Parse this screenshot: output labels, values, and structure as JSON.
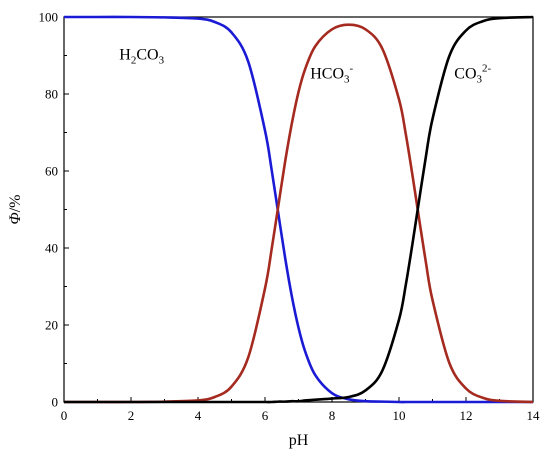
{
  "chart_data": {
    "type": "line",
    "title": "",
    "xlabel": "pH",
    "ylabel": "Φ/%",
    "ylabel_parts": {
      "symbol": "Φ",
      "unit": "/%"
    },
    "xlim": [
      0,
      14
    ],
    "ylim": [
      0,
      100
    ],
    "x_ticks": [
      0,
      2,
      4,
      6,
      8,
      10,
      12,
      14
    ],
    "x_tick_labels": [
      "0",
      "2",
      "4",
      "6",
      "8",
      "10",
      "12",
      "14"
    ],
    "y_ticks": [
      0,
      20,
      40,
      60,
      80,
      100
    ],
    "y_tick_labels": [
      "0",
      "20",
      "40",
      "60",
      "80",
      "100"
    ],
    "grid": false,
    "legend": "none",
    "x": [
      0,
      1,
      2,
      3,
      4,
      4.5,
      5,
      5.5,
      6,
      6.2,
      6.4,
      6.6,
      6.8,
      7,
      7.2,
      7.5,
      8,
      8.5,
      9,
      9.5,
      10,
      10.2,
      10.4,
      10.6,
      10.8,
      11,
      11.5,
      12,
      12.5,
      13,
      14
    ],
    "series": [
      {
        "color": "#1b1bd6",
        "label": {
          "base": "H",
          "sub1": "2",
          "mid": "CO",
          "sub2": "3",
          "sup": ""
        },
        "values": [
          100,
          100,
          100,
          99.9,
          99.6,
          98.7,
          96.0,
          88.4,
          70.5,
          60.2,
          48.8,
          37.5,
          27.5,
          19.3,
          13.1,
          7.0,
          2.3,
          0.7,
          0.2,
          0.1,
          0,
          0,
          0,
          0,
          0,
          0,
          0,
          0,
          0,
          0,
          0
        ]
      },
      {
        "color": "#a52a1f",
        "label": {
          "base": "",
          "sub1": "",
          "mid": "HCO",
          "sub2": "3",
          "sup": "-"
        },
        "values": [
          0,
          0,
          0,
          0.1,
          0.4,
          1.3,
          4.0,
          11.6,
          29.5,
          39.8,
          51.1,
          62.4,
          72.3,
          80.5,
          86.5,
          92.4,
          96.8,
          98.0,
          96.8,
          91.8,
          78.6,
          69.7,
          59.0,
          47.6,
          36.4,
          26.5,
          10.2,
          3.5,
          1.1,
          0.3,
          0
        ]
      },
      {
        "color": "#000000",
        "label": {
          "base": "",
          "sub1": "",
          "mid": "CO",
          "sub2": "3",
          "sup": "2-"
        },
        "values": [
          0,
          0,
          0,
          0,
          0,
          0,
          0,
          0,
          0,
          0,
          0.1,
          0.1,
          0.2,
          0.2,
          0.4,
          0.6,
          0.9,
          1.3,
          3.0,
          8.1,
          21.4,
          30.3,
          41.0,
          52.4,
          63.6,
          73.5,
          89.8,
          96.5,
          98.9,
          99.7,
          100
        ]
      }
    ]
  }
}
